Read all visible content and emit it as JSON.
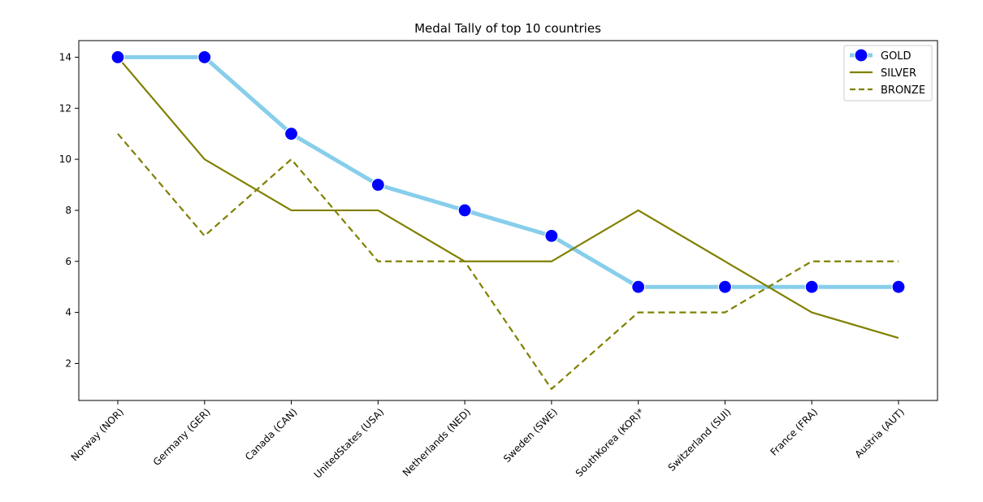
{
  "chart_data": {
    "type": "line",
    "title": "Medal Tally of top 10 countries",
    "xlabel": "",
    "ylabel": "",
    "categories": [
      "Norway (NOR)",
      "Germany (GER)",
      "Canada (CAN)",
      "UnitedStates (USA)",
      "Netherlands (NED)",
      "Sweden (SWE)",
      "SouthKorea (KOR)*",
      "Switzerland (SUI)",
      "France (FRA)",
      "Austria (AUT)"
    ],
    "ylim": [
      0.55,
      14.65
    ],
    "yticks": [
      2,
      4,
      6,
      8,
      10,
      12,
      14
    ],
    "grid": false,
    "legend_position": "top-right",
    "series": [
      {
        "name": "GOLD",
        "values": [
          14,
          14,
          11,
          9,
          8,
          7,
          5,
          5,
          5,
          5
        ],
        "color": "#87ceeb",
        "marker_color": "#0000ff",
        "style": "solid-thick-markers"
      },
      {
        "name": "SILVER",
        "values": [
          14,
          10,
          8,
          8,
          6,
          6,
          8,
          6,
          4,
          3
        ],
        "color": "#808000",
        "style": "solid"
      },
      {
        "name": "BRONZE",
        "values": [
          11,
          7,
          10,
          6,
          6,
          1,
          4,
          4,
          6,
          6
        ],
        "color": "#808000",
        "style": "dashed"
      }
    ]
  }
}
